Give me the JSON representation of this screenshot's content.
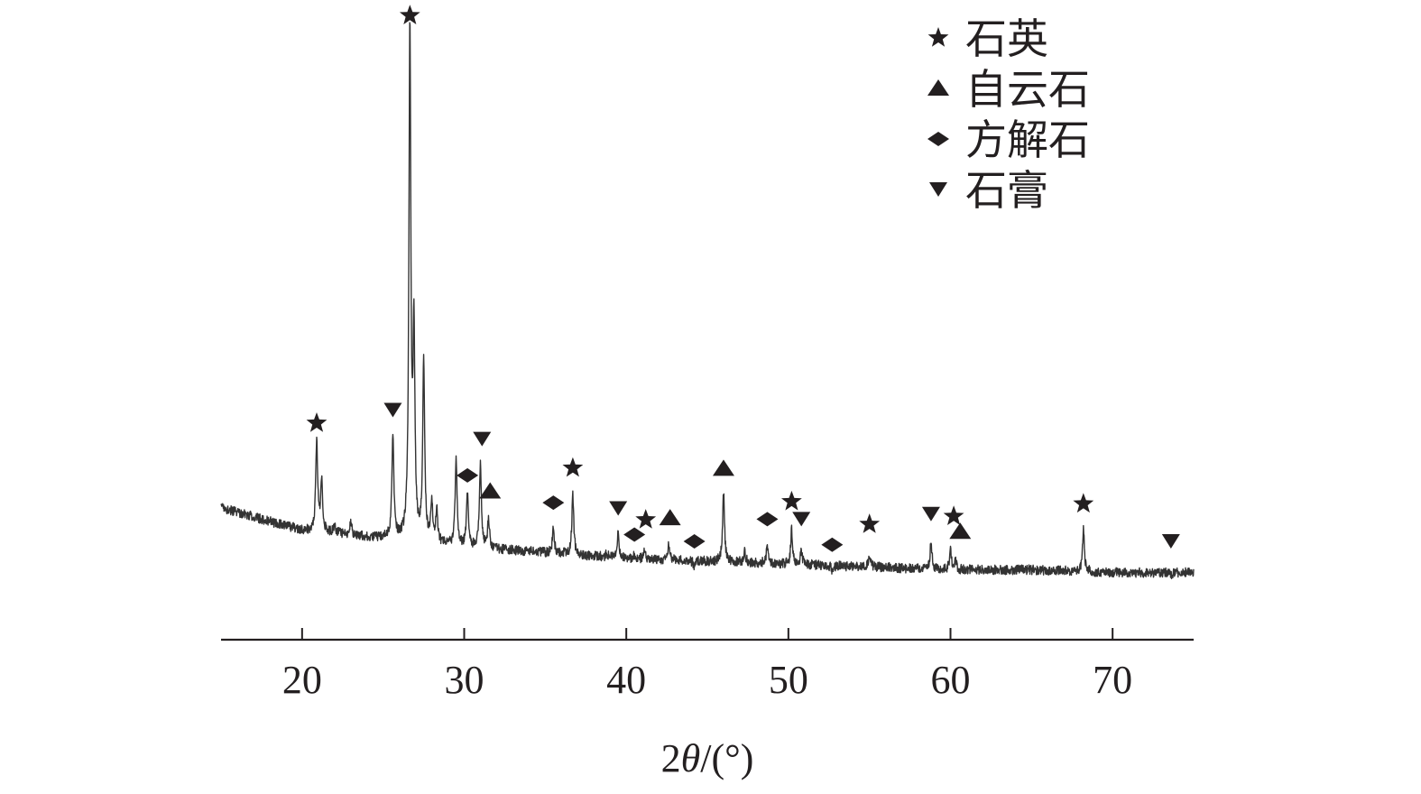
{
  "chart_data": {
    "type": "line",
    "title": "",
    "xlabel": "2θ/(°)",
    "xlabel_parts": {
      "prefix": "2",
      "symbol": "θ",
      "suffix": "/(°)"
    },
    "ylabel": "",
    "xlim": [
      15,
      75
    ],
    "ylim": [
      0,
      100
    ],
    "x_ticks": [
      20,
      30,
      40,
      50,
      60,
      70
    ],
    "x_tick_labels": [
      "20",
      "30",
      "40",
      "50",
      "60",
      "70"
    ],
    "y_axis_visible": false,
    "grid": false,
    "legend_position": "top-right",
    "legend": [
      {
        "label": "石英",
        "marker": "star"
      },
      {
        "label": "自云石",
        "marker": "triangle-up"
      },
      {
        "label": "方解石",
        "marker": "diamond"
      },
      {
        "label": "石膏",
        "marker": "triangle-down"
      }
    ],
    "baseline": [
      [
        15,
        16
      ],
      [
        18,
        13.5
      ],
      [
        20,
        12
      ],
      [
        25,
        10.5
      ],
      [
        30,
        9
      ],
      [
        35,
        8
      ],
      [
        40,
        7
      ],
      [
        45,
        6.5
      ],
      [
        50,
        6
      ],
      [
        55,
        5.5
      ],
      [
        60,
        5
      ],
      [
        65,
        5
      ],
      [
        70,
        4.5
      ],
      [
        75,
        4.5
      ]
    ],
    "peaks": [
      {
        "x": 20.9,
        "y": 27.7,
        "phase": "石英"
      },
      {
        "x": 21.2,
        "y": 21.0,
        "phase": ""
      },
      {
        "x": 22.0,
        "y": 12.7,
        "phase": ""
      },
      {
        "x": 23.0,
        "y": 13.4,
        "phase": ""
      },
      {
        "x": 25.6,
        "y": 28.8,
        "phase": "石膏"
      },
      {
        "x": 26.65,
        "y": 100,
        "phase": "石英"
      },
      {
        "x": 26.9,
        "y": 45.2,
        "phase": ""
      },
      {
        "x": 27.5,
        "y": 42.1,
        "phase": ""
      },
      {
        "x": 28.0,
        "y": 16.7,
        "phase": ""
      },
      {
        "x": 28.3,
        "y": 15.2,
        "phase": ""
      },
      {
        "x": 29.5,
        "y": 24.5,
        "phase": ""
      },
      {
        "x": 30.2,
        "y": 18.5,
        "phase": "方解石"
      },
      {
        "x": 31.0,
        "y": 23.7,
        "phase": "石膏"
      },
      {
        "x": 31.5,
        "y": 14.0,
        "phase": "自云石"
      },
      {
        "x": 35.5,
        "y": 12.3,
        "phase": "方解石"
      },
      {
        "x": 36.7,
        "y": 18.0,
        "phase": "石英"
      },
      {
        "x": 38.8,
        "y": 7.8,
        "phase": ""
      },
      {
        "x": 39.5,
        "y": 11.7,
        "phase": "石膏"
      },
      {
        "x": 40.5,
        "y": 7.5,
        "phase": "方解石"
      },
      {
        "x": 41.1,
        "y": 8.4,
        "phase": "石英"
      },
      {
        "x": 42.6,
        "y": 9.1,
        "phase": "自云石"
      },
      {
        "x": 44.2,
        "y": 5.5,
        "phase": "方解石"
      },
      {
        "x": 46.0,
        "y": 18.4,
        "phase": "自云石"
      },
      {
        "x": 47.3,
        "y": 8.3,
        "phase": ""
      },
      {
        "x": 48.7,
        "y": 9.2,
        "phase": "方解石"
      },
      {
        "x": 50.2,
        "y": 12.0,
        "phase": "石英"
      },
      {
        "x": 50.8,
        "y": 8.2,
        "phase": "石膏"
      },
      {
        "x": 52.7,
        "y": 4.9,
        "phase": "方解石"
      },
      {
        "x": 55.0,
        "y": 7.9,
        "phase": "石英"
      },
      {
        "x": 58.8,
        "y": 10.0,
        "phase": "石膏"
      },
      {
        "x": 60.0,
        "y": 8.6,
        "phase": "石英"
      },
      {
        "x": 60.3,
        "y": 6.6,
        "phase": "自云石"
      },
      {
        "x": 68.2,
        "y": 12.0,
        "phase": "石英"
      },
      {
        "x": 73.6,
        "y": 4.1,
        "phase": "石膏"
      }
    ],
    "markers": [
      {
        "x": 20.9,
        "y": 30.8,
        "shape": "star"
      },
      {
        "x": 26.65,
        "y": 102.5,
        "shape": "star"
      },
      {
        "x": 36.7,
        "y": 22.9,
        "shape": "star"
      },
      {
        "x": 41.2,
        "y": 13.8,
        "shape": "star"
      },
      {
        "x": 50.2,
        "y": 17.0,
        "shape": "star"
      },
      {
        "x": 55.0,
        "y": 13.0,
        "shape": "star"
      },
      {
        "x": 60.2,
        "y": 14.4,
        "shape": "star"
      },
      {
        "x": 68.2,
        "y": 16.6,
        "shape": "star"
      },
      {
        "x": 31.6,
        "y": 18.8,
        "shape": "triangle-up"
      },
      {
        "x": 42.7,
        "y": 14.1,
        "shape": "triangle-up"
      },
      {
        "x": 46.0,
        "y": 22.8,
        "shape": "triangle-up"
      },
      {
        "x": 60.6,
        "y": 11.7,
        "shape": "triangle-up"
      },
      {
        "x": 30.2,
        "y": 21.6,
        "shape": "diamond"
      },
      {
        "x": 35.5,
        "y": 16.8,
        "shape": "diamond"
      },
      {
        "x": 40.5,
        "y": 11.2,
        "shape": "diamond"
      },
      {
        "x": 44.2,
        "y": 10.0,
        "shape": "diamond"
      },
      {
        "x": 48.7,
        "y": 13.9,
        "shape": "diamond"
      },
      {
        "x": 52.7,
        "y": 9.4,
        "shape": "diamond"
      },
      {
        "x": 25.6,
        "y": 33.1,
        "shape": "triangle-down"
      },
      {
        "x": 31.1,
        "y": 28.0,
        "shape": "triangle-down"
      },
      {
        "x": 39.5,
        "y": 15.8,
        "shape": "triangle-down"
      },
      {
        "x": 50.8,
        "y": 13.9,
        "shape": "triangle-down"
      },
      {
        "x": 58.8,
        "y": 14.8,
        "shape": "triangle-down"
      },
      {
        "x": 73.6,
        "y": 10.0,
        "shape": "triangle-down"
      }
    ],
    "colors": {
      "line": "#333333",
      "marker": "#231f20",
      "text": "#231f20"
    }
  }
}
